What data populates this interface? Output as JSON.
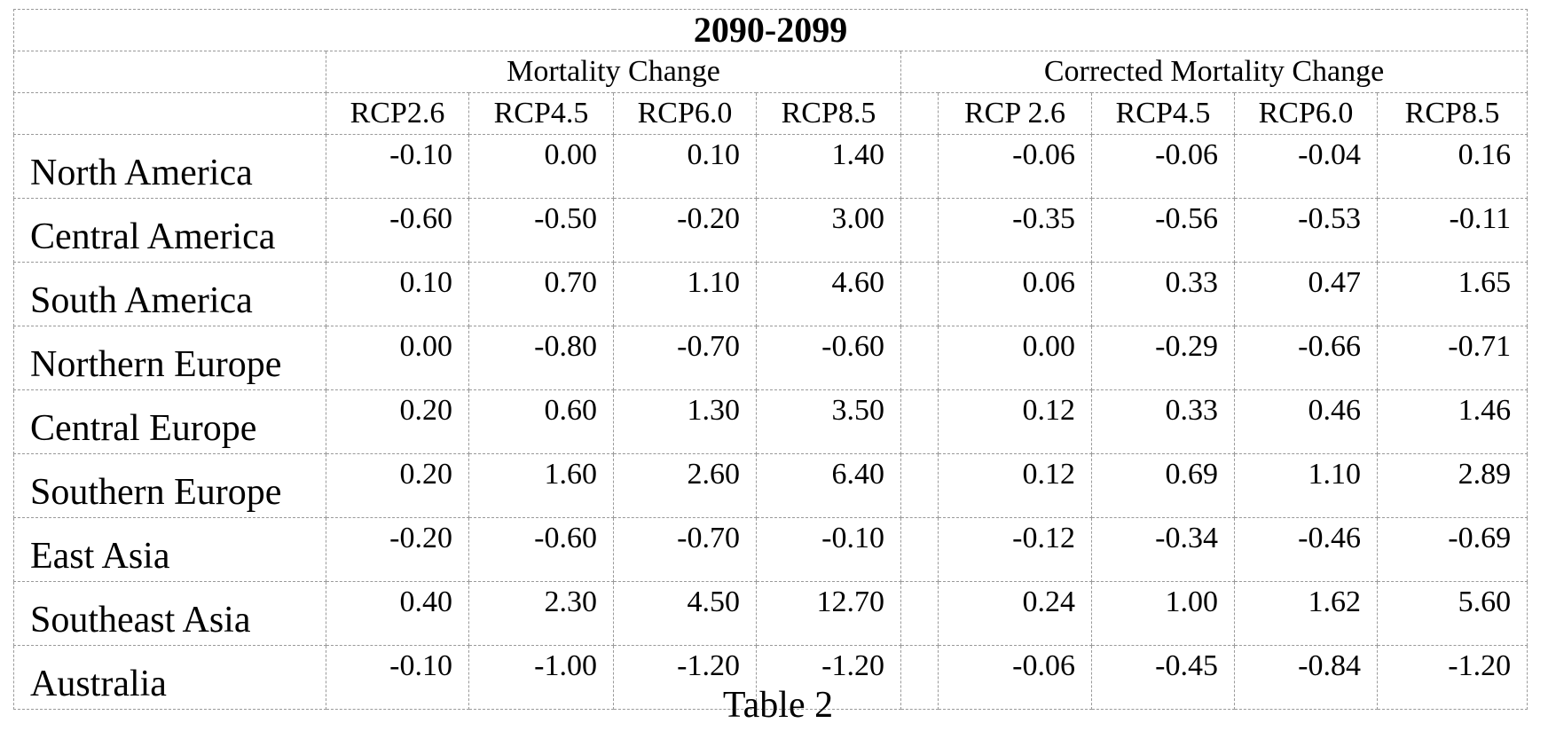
{
  "table": {
    "title": "2090-2099",
    "groups": [
      "Mortality Change",
      "Corrected Mortality Change"
    ],
    "mortality_columns": [
      "RCP2.6",
      "RCP4.5",
      "RCP6.0",
      "RCP8.5"
    ],
    "corrected_columns": [
      "RCP 2.6",
      "RCP4.5",
      "RCP6.0",
      "RCP8.5"
    ],
    "rows": [
      {
        "region": "North America",
        "mortality": [
          "-0.10",
          "0.00",
          "0.10",
          "1.40"
        ],
        "corrected": [
          "-0.06",
          "-0.06",
          "-0.04",
          "0.16"
        ]
      },
      {
        "region": "Central America",
        "mortality": [
          "-0.60",
          "-0.50",
          "-0.20",
          "3.00"
        ],
        "corrected": [
          "-0.35",
          "-0.56",
          "-0.53",
          "-0.11"
        ]
      },
      {
        "region": "South America",
        "mortality": [
          "0.10",
          "0.70",
          "1.10",
          "4.60"
        ],
        "corrected": [
          "0.06",
          "0.33",
          "0.47",
          "1.65"
        ]
      },
      {
        "region": "Northern Europe",
        "mortality": [
          "0.00",
          "-0.80",
          "-0.70",
          "-0.60"
        ],
        "corrected": [
          "0.00",
          "-0.29",
          "-0.66",
          "-0.71"
        ]
      },
      {
        "region": "Central Europe",
        "mortality": [
          "0.20",
          "0.60",
          "1.30",
          "3.50"
        ],
        "corrected": [
          "0.12",
          "0.33",
          "0.46",
          "1.46"
        ]
      },
      {
        "region": "Southern Europe",
        "mortality": [
          "0.20",
          "1.60",
          "2.60",
          "6.40"
        ],
        "corrected": [
          "0.12",
          "0.69",
          "1.10",
          "2.89"
        ]
      },
      {
        "region": "East Asia",
        "mortality": [
          "-0.20",
          "-0.60",
          "-0.70",
          "-0.10"
        ],
        "corrected": [
          "-0.12",
          "-0.34",
          "-0.46",
          "-0.69"
        ]
      },
      {
        "region": "Southeast Asia",
        "mortality": [
          "0.40",
          "2.30",
          "4.50",
          "12.70"
        ],
        "corrected": [
          "0.24",
          "1.00",
          "1.62",
          "5.60"
        ]
      },
      {
        "region": "Australia",
        "mortality": [
          "-0.10",
          "-1.00",
          "-1.20",
          "-1.20"
        ],
        "corrected": [
          "-0.06",
          "-0.45",
          "-0.84",
          "-1.20"
        ]
      }
    ]
  },
  "caption": "Table 2"
}
